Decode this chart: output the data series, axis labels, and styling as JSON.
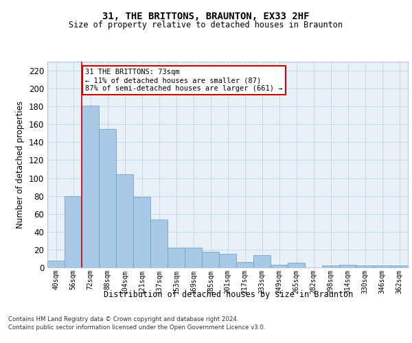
{
  "title": "31, THE BRITTONS, BRAUNTON, EX33 2HF",
  "subtitle": "Size of property relative to detached houses in Braunton",
  "xlabel": "Distribution of detached houses by size in Braunton",
  "ylabel": "Number of detached properties",
  "footer_line1": "Contains HM Land Registry data © Crown copyright and database right 2024.",
  "footer_line2": "Contains public sector information licensed under the Open Government Licence v3.0.",
  "categories": [
    "40sqm",
    "56sqm",
    "72sqm",
    "88sqm",
    "104sqm",
    "121sqm",
    "137sqm",
    "153sqm",
    "169sqm",
    "185sqm",
    "201sqm",
    "217sqm",
    "233sqm",
    "249sqm",
    "265sqm",
    "282sqm",
    "298sqm",
    "314sqm",
    "330sqm",
    "346sqm",
    "362sqm"
  ],
  "values": [
    8,
    80,
    181,
    155,
    104,
    79,
    54,
    22,
    22,
    18,
    15,
    6,
    14,
    3,
    5,
    0,
    2,
    3,
    2,
    2,
    2
  ],
  "bar_color": "#a8c8e8",
  "bar_edge_color": "#6699bb",
  "grid_color": "#c8d8e8",
  "annotation_box_color": "#cc0000",
  "property_line_color": "#cc0000",
  "property_bin_index": 2,
  "annotation_text_line1": "31 THE BRITTONS: 73sqm",
  "annotation_text_line2": "← 11% of detached houses are smaller (87)",
  "annotation_text_line3": "87% of semi-detached houses are larger (661) →",
  "ylim": [
    0,
    230
  ],
  "yticks": [
    0,
    20,
    40,
    60,
    80,
    100,
    120,
    140,
    160,
    180,
    200,
    220
  ],
  "bg_color": "#e8f0f8",
  "fig_bg_color": "#ffffff"
}
